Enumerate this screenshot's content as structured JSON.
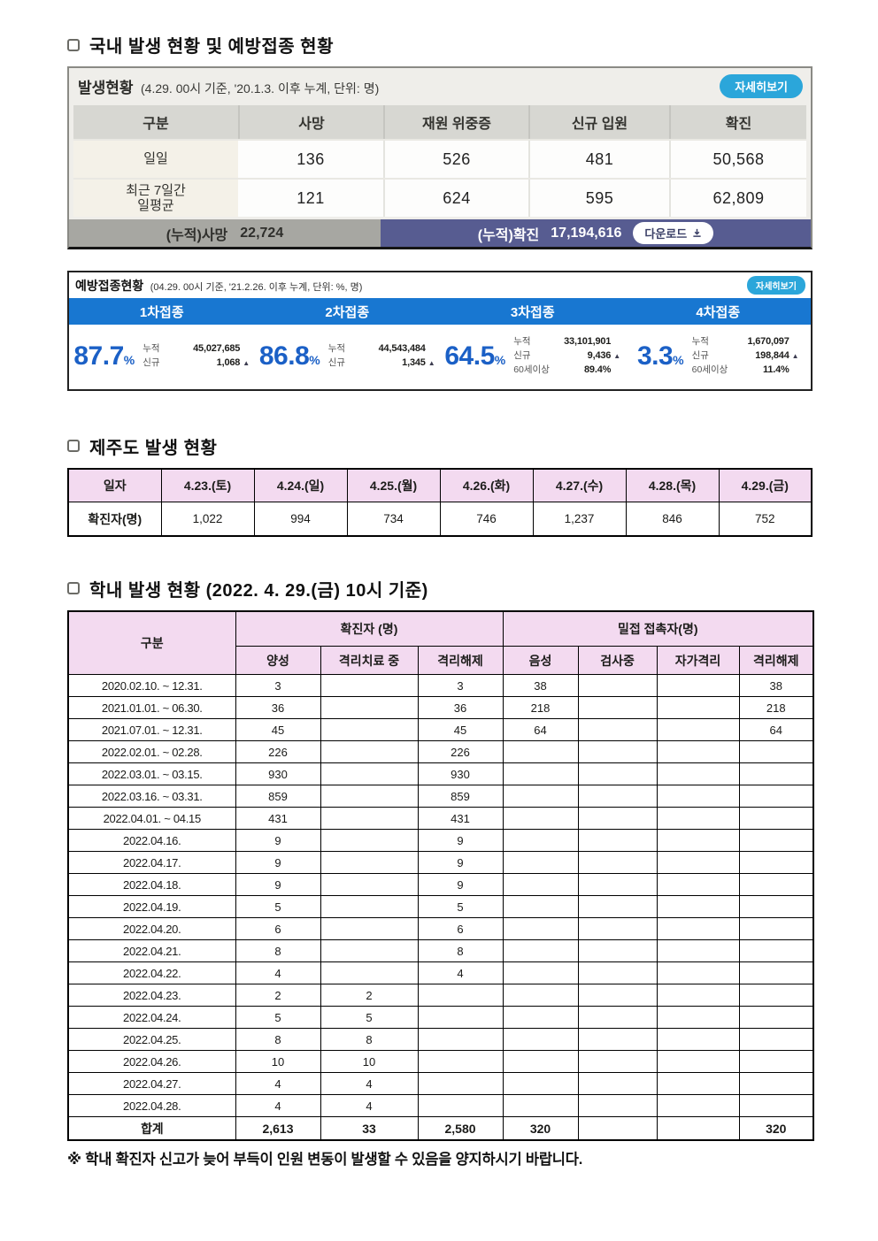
{
  "page": {
    "section1_title": "국내 발생 현황 및 예방접종 현황",
    "section2_title": "제주도 발생 현황",
    "section3_title": "학내 발생 현황 (2022. 4. 29.(금) 10시 기준)",
    "footnote": "※ 학내 확진자 신고가 늦어 부득이 인원 변동이 발생할 수 있음을 양지하시기 바랍니다."
  },
  "colors": {
    "accent_blue": "#2ba6da",
    "bar_blue": "#1877d1",
    "footer_navy": "#575c91",
    "header_pink": "#f3daf0",
    "percent_blue": "#1b60c6"
  },
  "outbreak": {
    "title": "발생현황",
    "subtitle": "(4.29. 00시 기준, '20.1.3. 이후 누계, 단위: 명)",
    "detail_button": "자세히보기",
    "columns": [
      "구분",
      "사망",
      "재원 위중증",
      "신규 입원",
      "확진"
    ],
    "rows": [
      {
        "label_line1": "일일",
        "label_line2": "",
        "values": [
          "136",
          "526",
          "481",
          "50,568"
        ]
      },
      {
        "label_line1": "최근 7일간",
        "label_line2": "일평균",
        "values": [
          "121",
          "624",
          "595",
          "62,809"
        ]
      }
    ],
    "footer": {
      "deaths_label": "(누적)사망",
      "deaths_value": "22,724",
      "confirmed_label": "(누적)확진",
      "confirmed_value": "17,194,616",
      "download_label": "다운로드"
    }
  },
  "vaccination": {
    "title": "예방접종현황",
    "subtitle": "(04.29. 00시 기준, '21.2.26. 이후 누계, 단위: %, 명)",
    "detail_button": "자세히보기",
    "doses": [
      {
        "label": "1차접종",
        "percent": "87.7",
        "stats": [
          {
            "k": "누적",
            "v": "45,027,685",
            "up": false
          },
          {
            "k": "신규",
            "v": "1,068",
            "up": true
          }
        ]
      },
      {
        "label": "2차접종",
        "percent": "86.8",
        "stats": [
          {
            "k": "누적",
            "v": "44,543,484",
            "up": false
          },
          {
            "k": "신규",
            "v": "1,345",
            "up": true
          }
        ]
      },
      {
        "label": "3차접종",
        "percent": "64.5",
        "stats": [
          {
            "k": "누적",
            "v": "33,101,901",
            "up": false
          },
          {
            "k": "신규",
            "v": "9,436",
            "up": true
          },
          {
            "k": "60세이상",
            "v": "89.4%",
            "up": false
          }
        ]
      },
      {
        "label": "4차접종",
        "percent": "3.3",
        "stats": [
          {
            "k": "누적",
            "v": "1,670,097",
            "up": false
          },
          {
            "k": "신규",
            "v": "198,844",
            "up": true
          },
          {
            "k": "60세이상",
            "v": "11.4%",
            "up": false
          }
        ]
      }
    ]
  },
  "jeju": {
    "header": [
      "일자",
      "4.23.(토)",
      "4.24.(일)",
      "4.25.(월)",
      "4.26.(화)",
      "4.27.(수)",
      "4.28.(목)",
      "4.29.(금)"
    ],
    "row_label": "확진자(명)",
    "values": [
      "1,022",
      "994",
      "734",
      "746",
      "1,237",
      "846",
      "752"
    ]
  },
  "school": {
    "corner_header": "구분",
    "group_confirmed": "확진자 (명)",
    "group_contact": "밀접 접촉자(명)",
    "sub_headers": [
      "양성",
      "격리치료 중",
      "격리해제",
      "음성",
      "검사중",
      "자가격리",
      "격리해제"
    ],
    "rows": [
      {
        "label": "2020.02.10.  ~  12.31.",
        "cells": [
          "3",
          "",
          "3",
          "38",
          "",
          "",
          "38"
        ]
      },
      {
        "label": "2021.01.01.  ~  06.30.",
        "cells": [
          "36",
          "",
          "36",
          "218",
          "",
          "",
          "218"
        ]
      },
      {
        "label": "2021.07.01.  ~  12.31.",
        "cells": [
          "45",
          "",
          "45",
          "64",
          "",
          "",
          "64"
        ]
      },
      {
        "label": "2022.02.01.  ~  02.28.",
        "cells": [
          "226",
          "",
          "226",
          "",
          "",
          "",
          ""
        ]
      },
      {
        "label": "2022.03.01.  ~  03.15.",
        "cells": [
          "930",
          "",
          "930",
          "",
          "",
          "",
          ""
        ]
      },
      {
        "label": "2022.03.16.  ~  03.31.",
        "cells": [
          "859",
          "",
          "859",
          "",
          "",
          "",
          ""
        ]
      },
      {
        "label": "2022.04.01.  ~  04.15",
        "cells": [
          "431",
          "",
          "431",
          "",
          "",
          "",
          ""
        ]
      },
      {
        "label": "2022.04.16.",
        "cells": [
          "9",
          "",
          "9",
          "",
          "",
          "",
          ""
        ]
      },
      {
        "label": "2022.04.17.",
        "cells": [
          "9",
          "",
          "9",
          "",
          "",
          "",
          ""
        ]
      },
      {
        "label": "2022.04.18.",
        "cells": [
          "9",
          "",
          "9",
          "",
          "",
          "",
          ""
        ]
      },
      {
        "label": "2022.04.19.",
        "cells": [
          "5",
          "",
          "5",
          "",
          "",
          "",
          ""
        ]
      },
      {
        "label": "2022.04.20.",
        "cells": [
          "6",
          "",
          "6",
          "",
          "",
          "",
          ""
        ]
      },
      {
        "label": "2022.04.21.",
        "cells": [
          "8",
          "",
          "8",
          "",
          "",
          "",
          ""
        ]
      },
      {
        "label": "2022.04.22.",
        "cells": [
          "4",
          "",
          "4",
          "",
          "",
          "",
          ""
        ]
      },
      {
        "label": "2022.04.23.",
        "cells": [
          "2",
          "2",
          "",
          "",
          "",
          "",
          ""
        ]
      },
      {
        "label": "2022.04.24.",
        "cells": [
          "5",
          "5",
          "",
          "",
          "",
          "",
          ""
        ]
      },
      {
        "label": "2022.04.25.",
        "cells": [
          "8",
          "8",
          "",
          "",
          "",
          "",
          ""
        ]
      },
      {
        "label": "2022.04.26.",
        "cells": [
          "10",
          "10",
          "",
          "",
          "",
          "",
          ""
        ]
      },
      {
        "label": "2022.04.27.",
        "cells": [
          "4",
          "4",
          "",
          "",
          "",
          "",
          ""
        ]
      },
      {
        "label": "2022.04.28.",
        "cells": [
          "4",
          "4",
          "",
          "",
          "",
          "",
          ""
        ]
      }
    ],
    "total": {
      "label": "합계",
      "cells": [
        "2,613",
        "33",
        "2,580",
        "320",
        "",
        "",
        "320"
      ]
    }
  }
}
